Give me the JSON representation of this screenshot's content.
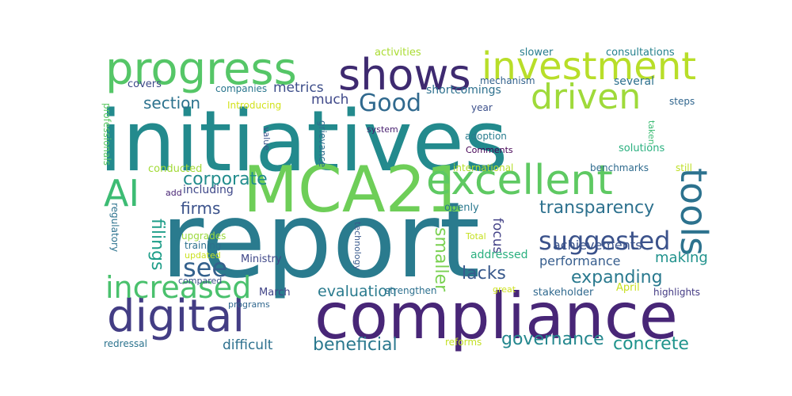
{
  "word_cloud": {
    "words": [
      {
        "text": "report",
        "color": "#2a7b8e"
      },
      {
        "text": "initiatives",
        "color": "#238a8d"
      },
      {
        "text": "compliance",
        "color": "#482677"
      },
      {
        "text": "MCA21",
        "color": "#6ece58"
      },
      {
        "text": "excellent",
        "color": "#5ec962"
      },
      {
        "text": "progress",
        "color": "#55c667"
      },
      {
        "text": "shows",
        "color": "#3e2a70"
      },
      {
        "text": "investment",
        "color": "#b8de29"
      },
      {
        "text": "digital",
        "color": "#433d84"
      },
      {
        "text": "driven",
        "color": "#9fda3a"
      },
      {
        "text": "increased",
        "color": "#4ac16d"
      },
      {
        "text": "suggested",
        "color": "#3b528b"
      },
      {
        "text": "tools",
        "color": "#2c728e"
      },
      {
        "text": "AI",
        "color": "#3dbc74"
      },
      {
        "text": "Good",
        "color": "#30698e"
      },
      {
        "text": "see",
        "color": "#34618d"
      },
      {
        "text": "transparency",
        "color": "#2d718e"
      },
      {
        "text": "expanding",
        "color": "#29798e"
      },
      {
        "text": "corporate",
        "color": "#228d8d"
      },
      {
        "text": "filings",
        "color": "#1f9e89"
      },
      {
        "text": "smaller",
        "color": "#7ad151"
      },
      {
        "text": "lacks",
        "color": "#38598c"
      },
      {
        "text": "governance",
        "color": "#24878e"
      },
      {
        "text": "beneficial",
        "color": "#2a788e"
      },
      {
        "text": "concrete",
        "color": "#1f948c"
      },
      {
        "text": "section",
        "color": "#2c728e"
      },
      {
        "text": "firms",
        "color": "#3b528b"
      },
      {
        "text": "evaluation",
        "color": "#2a7b8e"
      },
      {
        "text": "making",
        "color": "#20928c"
      },
      {
        "text": "performance",
        "color": "#365d8d"
      },
      {
        "text": "achievements",
        "color": "#3a538b"
      },
      {
        "text": "difficult",
        "color": "#2d708e"
      },
      {
        "text": "much",
        "color": "#3f4889"
      },
      {
        "text": "metrics",
        "color": "#3d4e8a"
      },
      {
        "text": "focus",
        "color": "#424086"
      },
      {
        "text": "activities",
        "color": "#aadc32"
      },
      {
        "text": "slower",
        "color": "#287d8e"
      },
      {
        "text": "consultations",
        "color": "#26828e"
      },
      {
        "text": "covers",
        "color": "#3e4a89"
      },
      {
        "text": "companies",
        "color": "#2a768e"
      },
      {
        "text": "mechanism",
        "color": "#33628d"
      },
      {
        "text": "several",
        "color": "#2d708e"
      },
      {
        "text": "highlights",
        "color": "#443b84"
      },
      {
        "text": "shortcomings",
        "color": "#2d708e"
      },
      {
        "text": "steps",
        "color": "#31668e"
      },
      {
        "text": "year",
        "color": "#3c508b"
      },
      {
        "text": "Introducing",
        "color": "#d2e21b"
      },
      {
        "text": "professionals",
        "color": "#5ec962"
      },
      {
        "text": "value",
        "color": "#3b528b"
      },
      {
        "text": "grievance",
        "color": "#2e6e8e"
      },
      {
        "text": "system",
        "color": "#481f70"
      },
      {
        "text": "taken",
        "color": "#3dbc74"
      },
      {
        "text": "adoption",
        "color": "#287c8e"
      },
      {
        "text": "Comments",
        "color": "#440154"
      },
      {
        "text": "solutions",
        "color": "#2ab07f"
      },
      {
        "text": "conducted",
        "color": "#a2da37"
      },
      {
        "text": "international",
        "color": "#b5de2b"
      },
      {
        "text": "benchmarks",
        "color": "#2f6b8e"
      },
      {
        "text": "still",
        "color": "#bddf26"
      },
      {
        "text": "add",
        "color": "#482475"
      },
      {
        "text": "including",
        "color": "#3f4889"
      },
      {
        "text": "openly",
        "color": "#2a788e"
      },
      {
        "text": "regulatory",
        "color": "#2c728e"
      },
      {
        "text": "upgrades",
        "color": "#9bd93c"
      },
      {
        "text": "training",
        "color": "#2d708e"
      },
      {
        "text": "updated",
        "color": "#cae11f"
      },
      {
        "text": "technology",
        "color": "#38598c"
      },
      {
        "text": "Total",
        "color": "#c5e021"
      },
      {
        "text": "Ministry",
        "color": "#3f4788"
      },
      {
        "text": "addressed",
        "color": "#2ab07f"
      },
      {
        "text": "compared",
        "color": "#3b528b"
      },
      {
        "text": "March",
        "color": "#414487"
      },
      {
        "text": "strengthen",
        "color": "#2d708e"
      },
      {
        "text": "stakeholder",
        "color": "#30698e"
      },
      {
        "text": "April",
        "color": "#c8e020"
      },
      {
        "text": "great",
        "color": "#cde11d"
      },
      {
        "text": "programs",
        "color": "#31688e"
      },
      {
        "text": "redressal",
        "color": "#2c738e"
      },
      {
        "text": "reforms",
        "color": "#c2df23"
      }
    ]
  }
}
